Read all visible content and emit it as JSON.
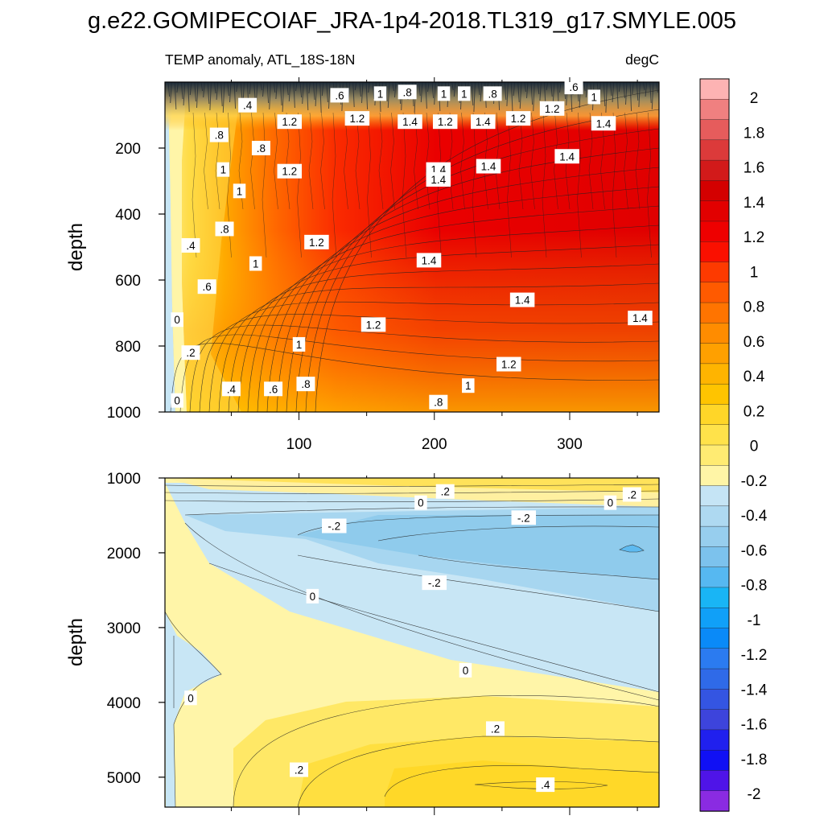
{
  "figure_title": "g.e22.GOMIPECOIAF_JRA-1p4-2018.TL319_g17.SMYLE.005",
  "panel_left_label": "TEMP anomaly, ATL_18S-18N",
  "panel_right_label": "degC",
  "chart_data": [
    {
      "type": "heatmap",
      "subtitle": "TEMP anomaly, ATL_18S-18N",
      "units": "degC",
      "ylabel": "depth",
      "xlim": [
        1,
        366
      ],
      "ylim": [
        0,
        1000
      ],
      "y_reversed": true,
      "x_ticks": [
        100,
        200,
        300
      ],
      "x_tick_labels": [
        "100",
        "200",
        "300"
      ],
      "y_ticks": [
        200,
        400,
        600,
        800,
        1000
      ],
      "y_tick_labels": [
        "200",
        "400",
        "600",
        "800",
        "1000"
      ],
      "description_of_field": "Warming increasing with time; near 0 at start, ~1.4-1.6 degC in upper 600 m after day ~150, decreasing with depth to ~0.6-1 at 1000 m",
      "contour_labels": [
        {
          "text": ".4",
          "x": 62,
          "y": 70
        },
        {
          "text": ".8",
          "x": 41,
          "y": 160
        },
        {
          "text": ".8",
          "x": 72,
          "y": 200
        },
        {
          "text": "1",
          "x": 44,
          "y": 265
        },
        {
          "text": "1",
          "x": 56,
          "y": 330
        },
        {
          "text": ".8",
          "x": 45,
          "y": 445
        },
        {
          "text": ".4",
          "x": 20,
          "y": 495
        },
        {
          "text": ".6",
          "x": 32,
          "y": 620
        },
        {
          "text": "0",
          "x": 10,
          "y": 720
        },
        {
          "text": ".2",
          "x": 20,
          "y": 820
        },
        {
          "text": "0",
          "x": 10,
          "y": 965
        },
        {
          "text": ".6",
          "x": 130,
          "y": 40
        },
        {
          "text": "1",
          "x": 160,
          "y": 35
        },
        {
          "text": ".8",
          "x": 180,
          "y": 30
        },
        {
          "text": "1",
          "x": 207,
          "y": 35
        },
        {
          "text": "1",
          "x": 222,
          "y": 35
        },
        {
          "text": ".8",
          "x": 243,
          "y": 35
        },
        {
          "text": ".6",
          "x": 303,
          "y": 15
        },
        {
          "text": "1",
          "x": 318,
          "y": 45
        },
        {
          "text": "1.2",
          "x": 93,
          "y": 120
        },
        {
          "text": "1.2",
          "x": 143,
          "y": 110
        },
        {
          "text": "1.4",
          "x": 182,
          "y": 120
        },
        {
          "text": "1.2",
          "x": 208,
          "y": 120
        },
        {
          "text": "1.4",
          "x": 236,
          "y": 120
        },
        {
          "text": "1.2",
          "x": 262,
          "y": 110
        },
        {
          "text": "1.2",
          "x": 287,
          "y": 80
        },
        {
          "text": "1.4",
          "x": 325,
          "y": 125
        },
        {
          "text": "1.2",
          "x": 93,
          "y": 270
        },
        {
          "text": "1.4",
          "x": 203,
          "y": 265
        },
        {
          "text": "1.4",
          "x": 240,
          "y": 255
        },
        {
          "text": "1.4",
          "x": 298,
          "y": 225
        },
        {
          "text": "1.4",
          "x": 203,
          "y": 295
        },
        {
          "text": "1",
          "x": 68,
          "y": 550
        },
        {
          "text": "1.2",
          "x": 113,
          "y": 485
        },
        {
          "text": "1.4",
          "x": 196,
          "y": 540
        },
        {
          "text": "1.4",
          "x": 265,
          "y": 660
        },
        {
          "text": "1.2",
          "x": 155,
          "y": 735
        },
        {
          "text": "1",
          "x": 100,
          "y": 795
        },
        {
          "text": "1.4",
          "x": 352,
          "y": 715
        },
        {
          "text": "1.2",
          "x": 255,
          "y": 855
        },
        {
          "text": ".8",
          "x": 105,
          "y": 915
        },
        {
          "text": "1",
          "x": 225,
          "y": 920
        },
        {
          "text": ".4",
          "x": 50,
          "y": 930
        },
        {
          "text": ".6",
          "x": 81,
          "y": 930
        },
        {
          "text": ".8",
          "x": 203,
          "y": 970
        }
      ]
    },
    {
      "type": "heatmap",
      "ylabel": "depth",
      "xlim": [
        1,
        366
      ],
      "ylim": [
        1000,
        5400
      ],
      "y_reversed": true,
      "y_ticks": [
        1000,
        2000,
        3000,
        4000,
        5000
      ],
      "y_tick_labels": [
        "1000",
        "2000",
        "3000",
        "4000",
        "5000"
      ],
      "description_of_field": "Small anomalies: slight warming (~0.2) near 1000 m, cooling (-0.2 to -0.4) between ~1300-3500 m growing in time, slight warming (0.2-0.4) below ~4000 m",
      "contour_labels": [
        {
          "text": ".2",
          "x": 208,
          "y": 1180
        },
        {
          "text": "0",
          "x": 190,
          "y": 1330
        },
        {
          "text": ".2",
          "x": 346,
          "y": 1220
        },
        {
          "text": "0",
          "x": 330,
          "y": 1330
        },
        {
          "text": "-.2",
          "x": 126,
          "y": 1640
        },
        {
          "text": "-.2",
          "x": 266,
          "y": 1530
        },
        {
          "text": "-.2",
          "x": 200,
          "y": 2400
        },
        {
          "text": "0",
          "x": 110,
          "y": 2580
        },
        {
          "text": "0",
          "x": 223,
          "y": 3570
        },
        {
          "text": "0",
          "x": 20,
          "y": 3940
        },
        {
          "text": ".2",
          "x": 245,
          "y": 4350
        },
        {
          "text": ".2",
          "x": 100,
          "y": 4900
        },
        {
          "text": ".4",
          "x": 282,
          "y": 5100
        }
      ]
    }
  ],
  "colorbar": {
    "labels": [
      "2",
      "1.8",
      "1.6",
      "1.4",
      "1.2",
      "1",
      "0.8",
      "0.6",
      "0.4",
      "0.2",
      "0",
      "-0.2",
      "-0.4",
      "-0.6",
      "-0.8",
      "-1",
      "-1.2",
      "-1.4",
      "-1.6",
      "-1.8",
      "-2"
    ],
    "colors_top_to_bottom": [
      "#fdb3b3",
      "#f08080",
      "#e65c5c",
      "#dc3a3a",
      "#d21a1a",
      "#d40000",
      "#e20000",
      "#ee0000",
      "#fa1000",
      "#fd3a00",
      "#ff5a00",
      "#ff7400",
      "#ff8c00",
      "#ffa000",
      "#ffb400",
      "#ffc400",
      "#ffd628",
      "#ffe24a",
      "#ffeb72",
      "#fff5a6",
      "#c5e4f5",
      "#aed9f1",
      "#97ceee",
      "#7cc2ed",
      "#56b8f1",
      "#19b5f5",
      "#10a0f8",
      "#0a8af8",
      "#2b7bf0",
      "#2f6ae8",
      "#3455e2",
      "#3d44dc",
      "#2020ee",
      "#1010f4",
      "#4f14e8",
      "#8a2be2"
    ]
  }
}
